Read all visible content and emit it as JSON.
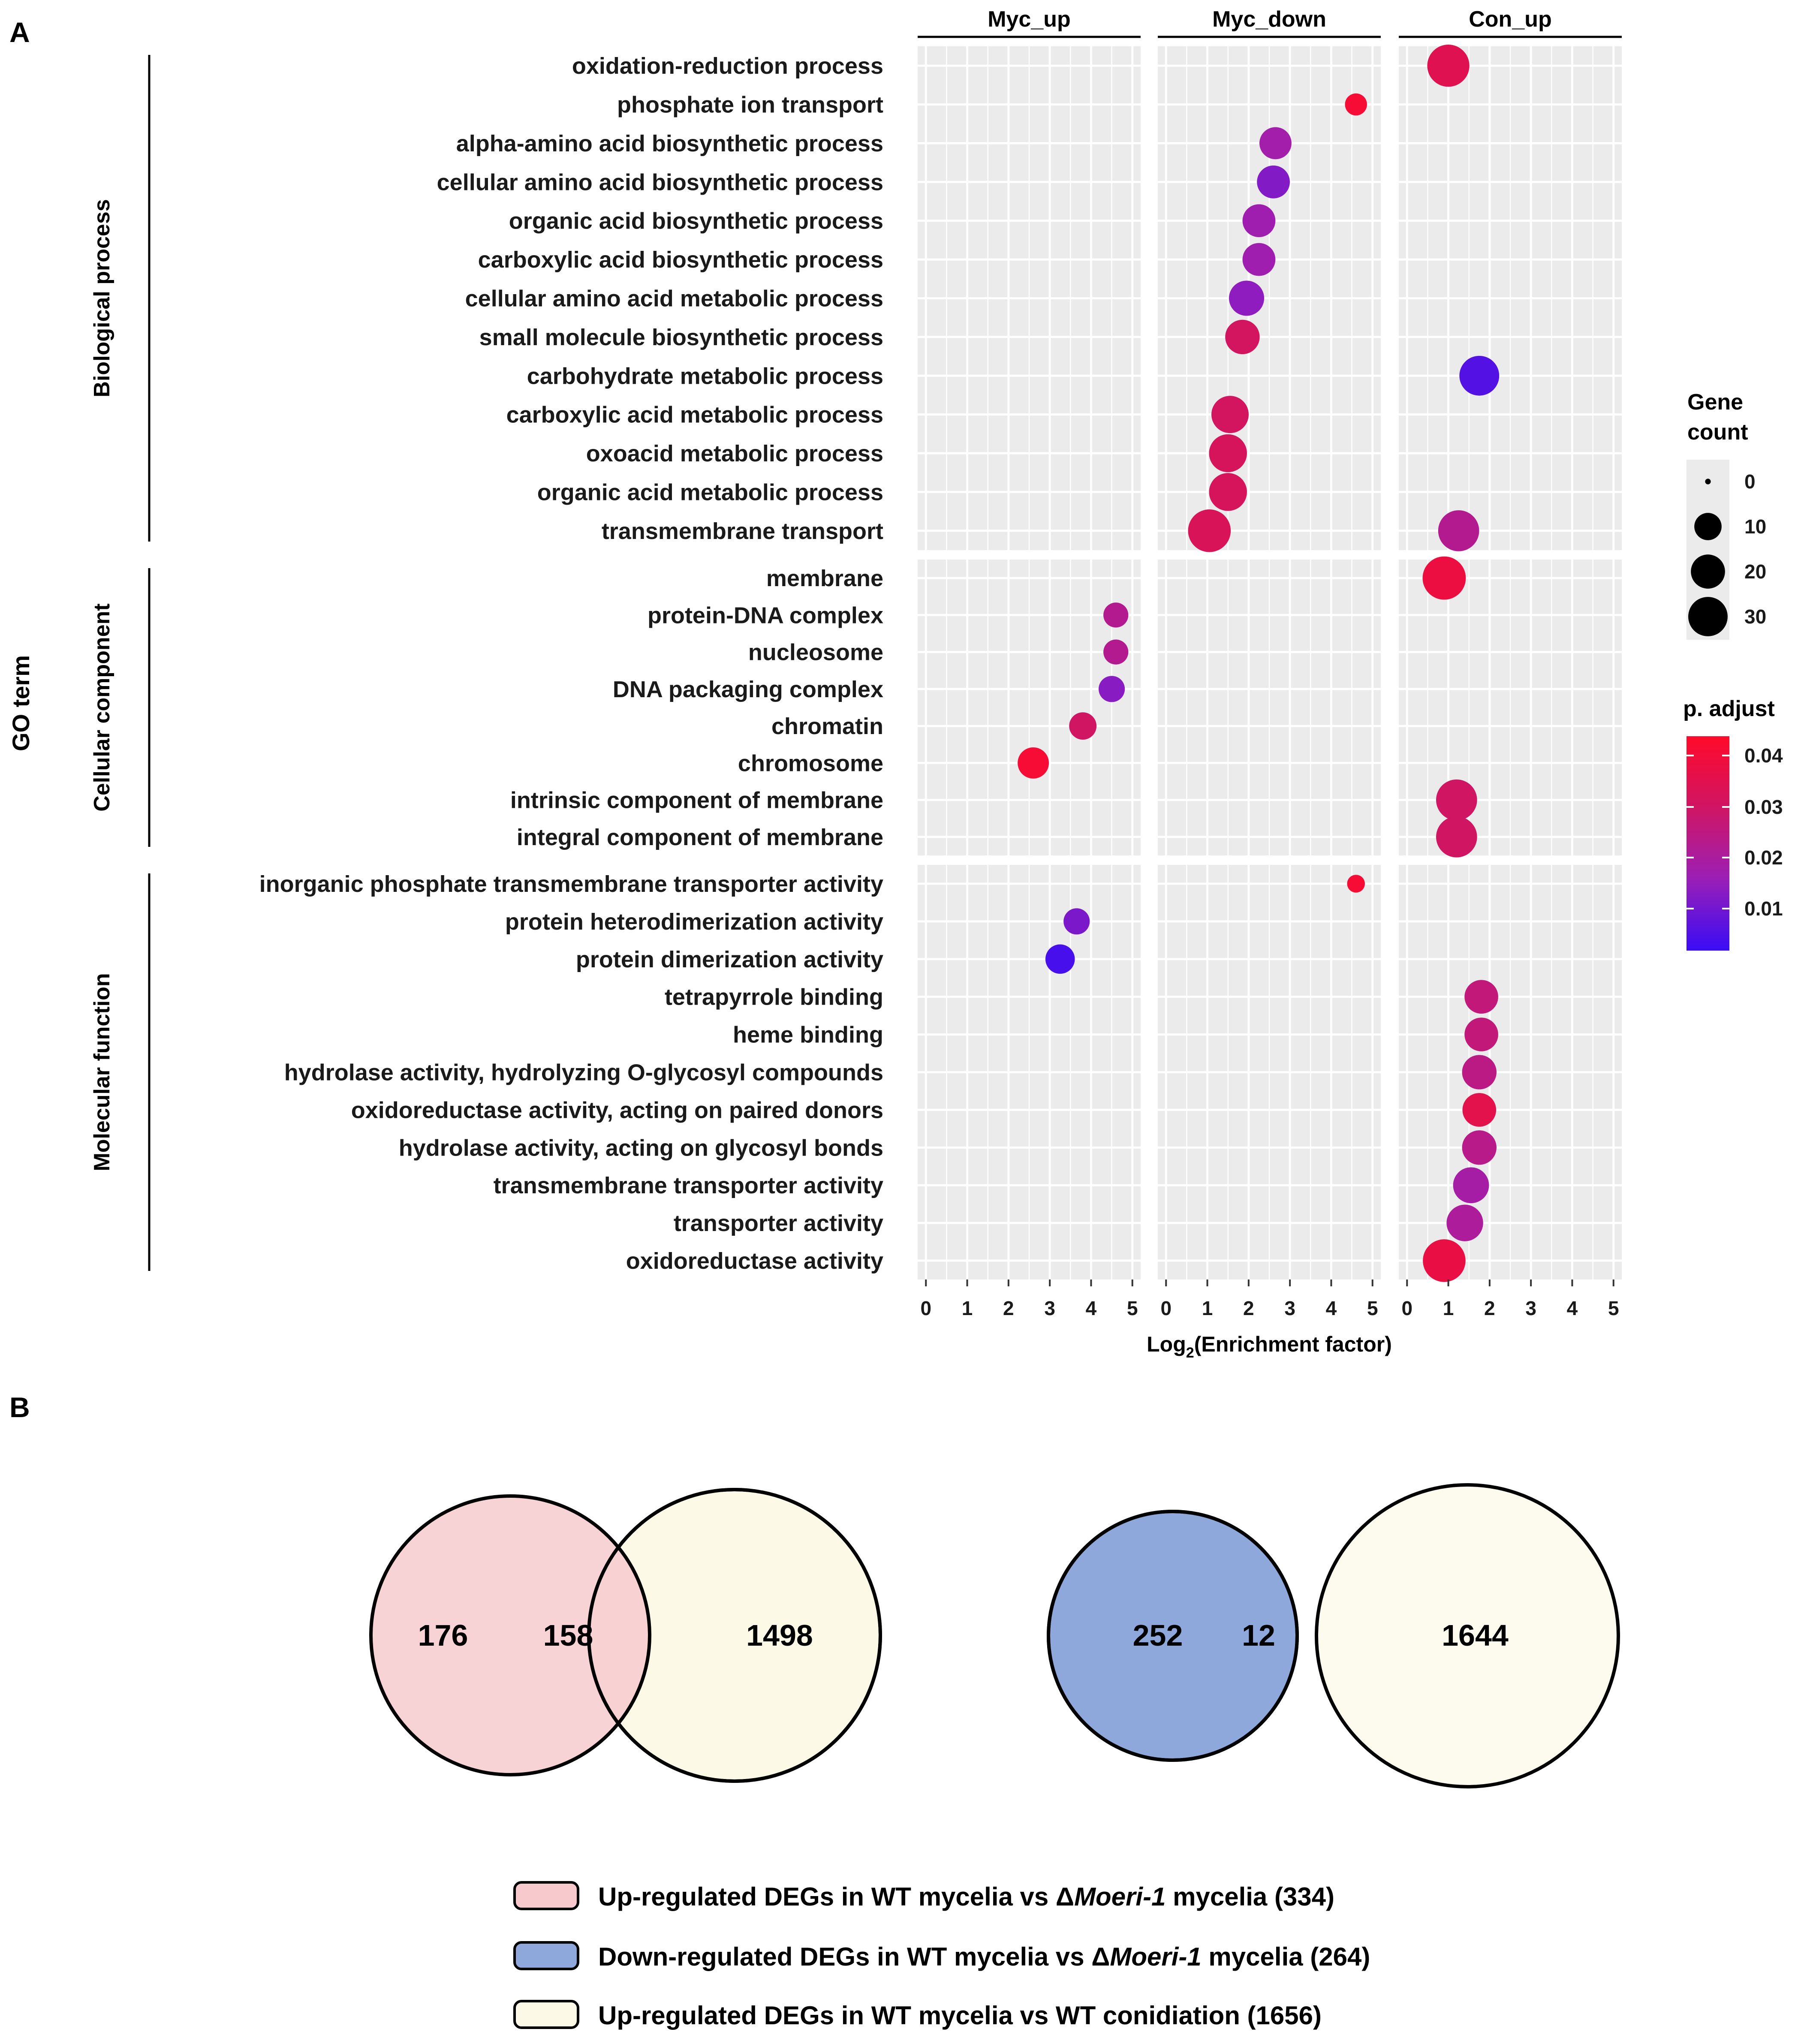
{
  "panel_a": {
    "label": "A",
    "y_axis_title": "GO term",
    "x_axis_title_prefix": "Log",
    "x_axis_title_sub": "2",
    "x_axis_title_suffix": "(Enrichment factor)",
    "x_ticks": [
      "0",
      "1",
      "2",
      "3",
      "4",
      "5"
    ],
    "size_legend": {
      "title_line1": "Gene",
      "title_line2": "count",
      "labels": [
        "0",
        "10",
        "20",
        "30"
      ]
    },
    "color_legend": {
      "title": "p. adjust",
      "labels": [
        "0.04",
        "0.03",
        "0.02",
        "0.01"
      ],
      "colors": [
        "#ff0a2a",
        "#d01563",
        "#9c1fb5",
        "#3a0cf5"
      ]
    }
  },
  "chart_data": {
    "type": "scatter",
    "title": "",
    "xlabel": "Log2(Enrichment factor)",
    "ylabel": "GO term",
    "xlim": [
      -0.2,
      5.2
    ],
    "size_variable": "Gene count",
    "size_range": [
      0,
      35
    ],
    "color_variable": "p. adjust",
    "color_range": [
      0.0,
      0.045
    ],
    "facet_columns": [
      "Myc_up",
      "Myc_down",
      "Con_up"
    ],
    "facet_rows": [
      {
        "name": "Biological process",
        "terms": [
          "oxidation-reduction process",
          "phosphate ion transport",
          "alpha-amino acid biosynthetic process",
          "cellular amino acid biosynthetic process",
          "organic acid biosynthetic process",
          "carboxylic acid biosynthetic process",
          "cellular amino acid metabolic process",
          "small molecule biosynthetic process",
          "carbohydrate metabolic process",
          "carboxylic acid metabolic process",
          "oxoacid metabolic process",
          "organic acid metabolic process",
          "transmembrane transport"
        ]
      },
      {
        "name": "Cellular component",
        "terms": [
          "membrane",
          "protein-DNA complex",
          "nucleosome",
          "DNA packaging complex",
          "chromatin",
          "chromosome",
          "intrinsic component of membrane",
          "integral component of membrane"
        ]
      },
      {
        "name": "Molecular function",
        "terms": [
          "inorganic phosphate transmembrane transporter activity",
          "protein heterodimerization activity",
          "protein dimerization activity",
          "tetrapyrrole binding",
          "heme binding",
          "hydrolase activity, hydrolyzing O-glycosyl compounds",
          "oxidoreductase activity, acting on paired donors",
          "hydrolase activity, acting on glycosyl bonds",
          "transmembrane transporter activity",
          "transporter activity",
          "oxidoreductase activity"
        ]
      }
    ],
    "points": [
      {
        "row": 0,
        "term": 0,
        "col": 2,
        "x": 1.0,
        "count": 27,
        "padj": 0.035
      },
      {
        "row": 0,
        "term": 1,
        "col": 1,
        "x": 4.6,
        "count": 3,
        "padj": 0.042
      },
      {
        "row": 0,
        "term": 2,
        "col": 1,
        "x": 2.65,
        "count": 12,
        "padj": 0.017
      },
      {
        "row": 0,
        "term": 3,
        "col": 1,
        "x": 2.6,
        "count": 13,
        "padj": 0.011
      },
      {
        "row": 0,
        "term": 4,
        "col": 1,
        "x": 2.25,
        "count": 13,
        "padj": 0.016
      },
      {
        "row": 0,
        "term": 5,
        "col": 1,
        "x": 2.25,
        "count": 13,
        "padj": 0.016
      },
      {
        "row": 0,
        "term": 6,
        "col": 1,
        "x": 1.95,
        "count": 16,
        "padj": 0.013
      },
      {
        "row": 0,
        "term": 7,
        "col": 1,
        "x": 1.85,
        "count": 15,
        "padj": 0.031
      },
      {
        "row": 0,
        "term": 8,
        "col": 2,
        "x": 1.75,
        "count": 23,
        "padj": 0.004
      },
      {
        "row": 0,
        "term": 9,
        "col": 1,
        "x": 1.55,
        "count": 19,
        "padj": 0.031
      },
      {
        "row": 0,
        "term": 10,
        "col": 1,
        "x": 1.5,
        "count": 20,
        "padj": 0.032
      },
      {
        "row": 0,
        "term": 11,
        "col": 1,
        "x": 1.5,
        "count": 20,
        "padj": 0.032
      },
      {
        "row": 0,
        "term": 12,
        "col": 1,
        "x": 1.05,
        "count": 28,
        "padj": 0.033
      },
      {
        "row": 0,
        "term": 12,
        "col": 2,
        "x": 1.25,
        "count": 25,
        "padj": 0.022
      },
      {
        "row": 1,
        "term": 0,
        "col": 2,
        "x": 0.9,
        "count": 29,
        "padj": 0.039
      },
      {
        "row": 1,
        "term": 1,
        "col": 0,
        "x": 4.6,
        "count": 5,
        "padj": 0.022
      },
      {
        "row": 1,
        "term": 2,
        "col": 0,
        "x": 4.6,
        "count": 5,
        "padj": 0.022
      },
      {
        "row": 1,
        "term": 3,
        "col": 0,
        "x": 4.5,
        "count": 6,
        "padj": 0.012
      },
      {
        "row": 1,
        "term": 4,
        "col": 0,
        "x": 3.8,
        "count": 7,
        "padj": 0.03
      },
      {
        "row": 1,
        "term": 5,
        "col": 0,
        "x": 2.6,
        "count": 11,
        "padj": 0.042
      },
      {
        "row": 1,
        "term": 6,
        "col": 2,
        "x": 1.2,
        "count": 25,
        "padj": 0.03
      },
      {
        "row": 1,
        "term": 7,
        "col": 2,
        "x": 1.2,
        "count": 25,
        "padj": 0.03
      },
      {
        "row": 2,
        "term": 0,
        "col": 1,
        "x": 4.6,
        "count": 1,
        "padj": 0.042
      },
      {
        "row": 2,
        "term": 1,
        "col": 0,
        "x": 3.65,
        "count": 6,
        "padj": 0.01
      },
      {
        "row": 2,
        "term": 2,
        "col": 0,
        "x": 3.25,
        "count": 9,
        "padj": 0.002
      },
      {
        "row": 2,
        "term": 3,
        "col": 2,
        "x": 1.8,
        "count": 14,
        "padj": 0.026
      },
      {
        "row": 2,
        "term": 4,
        "col": 2,
        "x": 1.8,
        "count": 14,
        "padj": 0.026
      },
      {
        "row": 2,
        "term": 5,
        "col": 2,
        "x": 1.75,
        "count": 15,
        "padj": 0.024
      },
      {
        "row": 2,
        "term": 6,
        "col": 2,
        "x": 1.75,
        "count": 14,
        "padj": 0.036
      },
      {
        "row": 2,
        "term": 7,
        "col": 2,
        "x": 1.75,
        "count": 15,
        "padj": 0.023
      },
      {
        "row": 2,
        "term": 8,
        "col": 2,
        "x": 1.55,
        "count": 17,
        "padj": 0.018
      },
      {
        "row": 2,
        "term": 9,
        "col": 2,
        "x": 1.4,
        "count": 18,
        "padj": 0.02
      },
      {
        "row": 2,
        "term": 10,
        "col": 2,
        "x": 0.9,
        "count": 28,
        "padj": 0.038
      }
    ]
  },
  "panel_b": {
    "label": "B",
    "venn_left": {
      "only_a": "176",
      "overlap": "158",
      "only_b": "1498"
    },
    "venn_right": {
      "only_a": "252",
      "overlap": "12",
      "only_b": "1644"
    },
    "colors": {
      "pink": "#f7c9cd",
      "blue": "#8ea8dc",
      "yellow": "#fcfae6"
    },
    "legend": [
      {
        "prefix": "Up-regulated DEGs in WT mycelia vs Δ",
        "italic": "Moeri-1",
        "suffix": " mycelia (334)"
      },
      {
        "prefix": "Down-regulated DEGs in WT mycelia vs Δ",
        "italic": "Moeri-1",
        "suffix": " mycelia (264)"
      },
      {
        "prefix": "Up-regulated DEGs in WT mycelia vs WT conidiation (1656)",
        "italic": "",
        "suffix": ""
      }
    ]
  }
}
